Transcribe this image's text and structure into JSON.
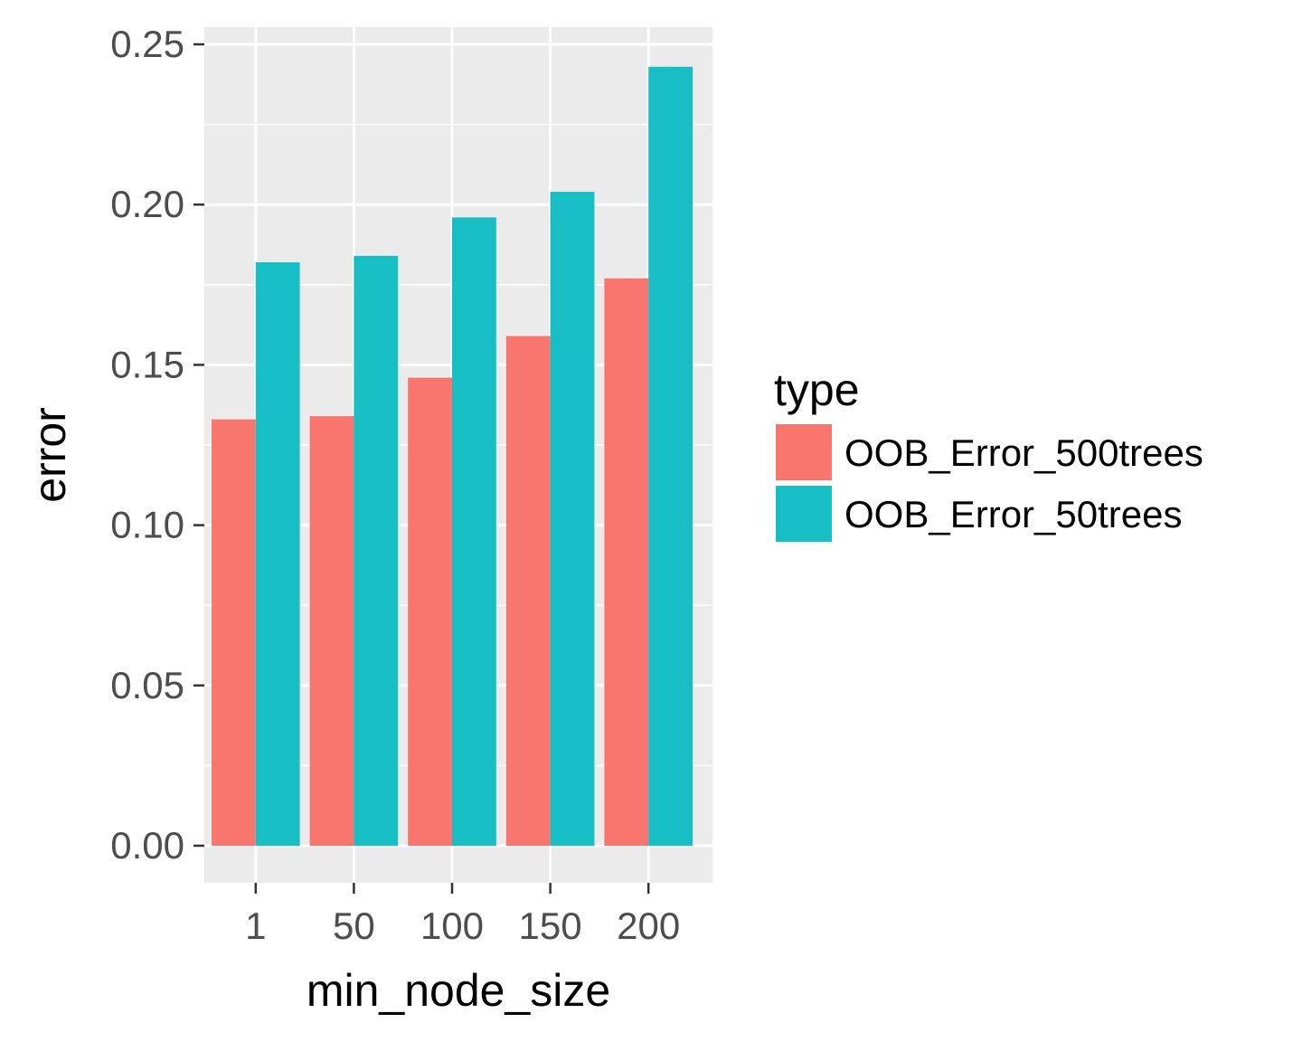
{
  "chart_data": {
    "type": "bar",
    "xlabel": "min_node_size",
    "ylabel": "error",
    "categories": [
      "1",
      "50",
      "100",
      "150",
      "200"
    ],
    "ylim": [
      0,
      0.26
    ],
    "yticks": [
      "0.00",
      "0.05",
      "0.10",
      "0.15",
      "0.20",
      "0.25"
    ],
    "ytick_values": [
      0,
      0.05,
      0.1,
      0.15,
      0.2,
      0.25
    ],
    "grid": true,
    "legend": {
      "title": "type",
      "position": "right"
    },
    "series": [
      {
        "name": "OOB_Error_500trees",
        "color": "#F8766D",
        "values": [
          0.133,
          0.134,
          0.146,
          0.159,
          0.177
        ]
      },
      {
        "name": "OOB_Error_50trees",
        "color": "#17BFC4",
        "values": [
          0.182,
          0.184,
          0.196,
          0.204,
          0.243
        ]
      }
    ],
    "panel_background": "#EBEBEB",
    "gridline_color": "#FFFFFF"
  }
}
